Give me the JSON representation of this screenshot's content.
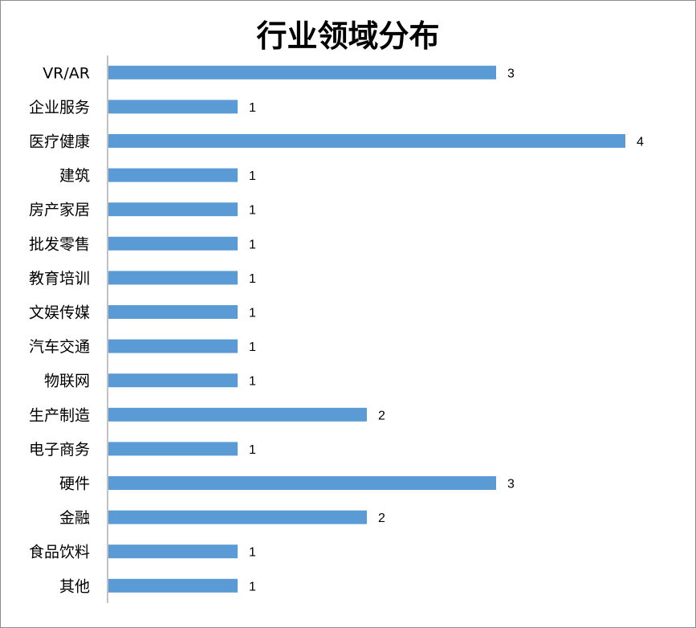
{
  "chart_data": {
    "type": "bar",
    "orientation": "horizontal",
    "title": "行业领域分布",
    "categories": [
      "VR/AR",
      "企业服务",
      "医疗健康",
      "建筑",
      "房产家居",
      "批发零售",
      "教育培训",
      "文娱传媒",
      "汽车交通",
      "物联网",
      "生产制造",
      "电子商务",
      "硬件",
      "金融",
      "食品饮料",
      "其他"
    ],
    "values": [
      3,
      1,
      4,
      1,
      1,
      1,
      1,
      1,
      1,
      1,
      2,
      1,
      3,
      2,
      1,
      1
    ],
    "xlim": [
      0,
      4
    ],
    "data_labels": true,
    "grid": false,
    "legend": "none",
    "bar_color": "#5b9bd5",
    "axis_color": "#868686"
  }
}
